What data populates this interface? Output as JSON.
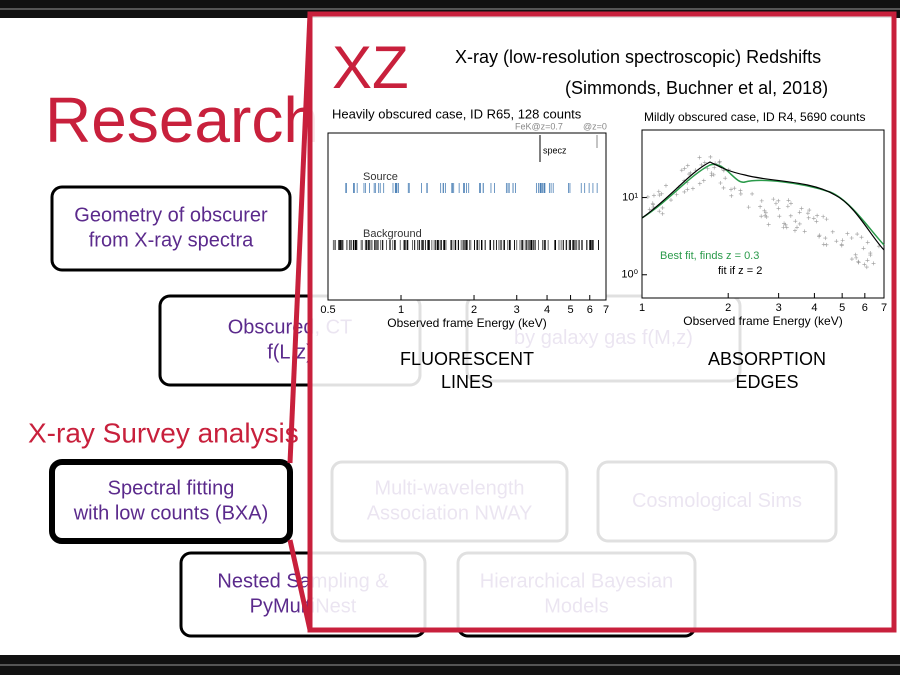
{
  "slide": {
    "title": "Research",
    "section_heading": "X-ray Survey analysis"
  },
  "boxes": [
    {
      "lines": [
        "Geometry of obscurer",
        "from X-ray spectra"
      ]
    },
    {
      "lines": [
        "Obscured, CT",
        "f(L,z)"
      ]
    },
    {
      "lines": [
        "by galaxy gas f(M,z)"
      ]
    },
    {
      "lines": [
        "Spectral fitting",
        "with low counts (BXA)"
      ]
    },
    {
      "lines": [
        "Multi-wavelength",
        "Association NWAY"
      ]
    },
    {
      "lines": [
        "Cosmological Sims"
      ]
    },
    {
      "lines": [
        "Nested Sampling &",
        "PyMultiNest"
      ]
    },
    {
      "lines": [
        "Hierarchical Bayesian",
        "Models"
      ]
    }
  ],
  "inset": {
    "logo": "XZ",
    "title": "X-ray (low-resolution spectroscopic) Redshifts",
    "citation": "(Simmonds, Buchner et al, 2018)",
    "plots": [
      {
        "title": "Heavily obscured case, ID R65, 128 counts",
        "xlabel": "Observed frame Energy (keV)",
        "xlim": [
          0.5,
          7
        ],
        "xticks": [
          0.5,
          1,
          2,
          3,
          4,
          5,
          6,
          7
        ],
        "annotations": [
          "FeK@z=0.7",
          "@z=0",
          "specz",
          "Source",
          "Background"
        ]
      },
      {
        "title": "Mildly obscured case, ID R4, 5690 counts",
        "xlabel": "Observed frame Energy (keV)",
        "xlim": [
          1,
          7
        ],
        "xticks": [
          1,
          2,
          3,
          4,
          5,
          6,
          7
        ],
        "ylim": [
          0.5,
          75
        ],
        "yticks": [
          {
            "value": 10,
            "label": "10¹"
          },
          {
            "value": 1,
            "label": "10⁰"
          }
        ],
        "legend": [
          "Best fit, finds z = 0.3",
          "fit if z = 2"
        ]
      }
    ],
    "captions": [
      [
        "FLUORESCENT",
        "LINES"
      ],
      [
        "ABSORPTION",
        "EDGES"
      ]
    ]
  }
}
